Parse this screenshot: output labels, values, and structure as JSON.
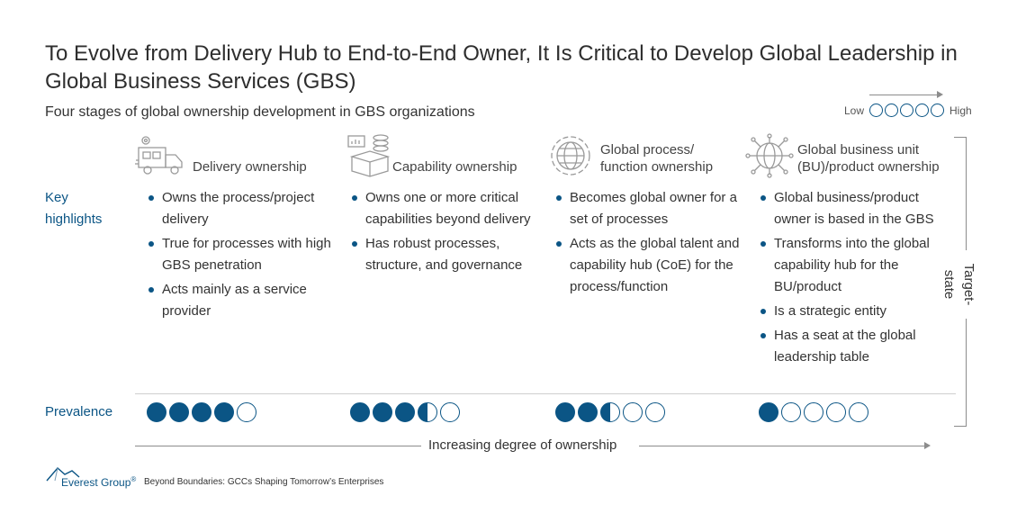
{
  "title": "To Evolve from Delivery Hub to End-to-End Owner, It Is Critical to Develop Global Leadership in Global Business Services (GBS)",
  "subtitle": "Four stages of global ownership development in GBS organizations",
  "legend": {
    "low": "Low",
    "high": "High"
  },
  "row_labels": {
    "key_highlights": "Key highlights",
    "prevalence": "Prevalence"
  },
  "stages": [
    {
      "icon": "delivery-truck-icon",
      "label_line1": "Delivery ownership",
      "label_line2": "",
      "highlights": [
        "Owns the process/project delivery",
        "True for processes with high GBS penetration",
        "Acts mainly as a service provider"
      ],
      "prevalence": 4
    },
    {
      "icon": "capability-box-icon",
      "label_line1": "Capability ownership",
      "label_line2": "",
      "highlights": [
        "Owns one or more critical capabilities beyond delivery",
        "Has robust processes, structure, and governance"
      ],
      "prevalence": 3.5
    },
    {
      "icon": "globe-gear-icon",
      "label_line1": "Global process/",
      "label_line2": "function ownership",
      "highlights": [
        "Becomes global owner for a set of processes",
        "Acts as the global talent and capability hub (CoE) for the process/function"
      ],
      "prevalence": 2.5
    },
    {
      "icon": "global-network-icon",
      "label_line1": "Global business unit",
      "label_line2": "(BU)/product ownership",
      "highlights": [
        "Global business/product owner is based in the GBS",
        "Transforms into the global capability hub for the BU/product",
        "Is a strategic entity",
        "Has a seat at the global leadership table"
      ],
      "prevalence": 1
    }
  ],
  "target_state": "Target-state",
  "bottom_arrow": "Increasing degree of ownership",
  "footer": {
    "brand": "Everest Group",
    "reg": "®",
    "tagline": "Beyond Boundaries: GCCs Shaping Tomorrow’s Enterprises"
  },
  "colors": {
    "accent": "#0b5585",
    "icon_gray": "#9a9a9a",
    "text": "#333333"
  }
}
